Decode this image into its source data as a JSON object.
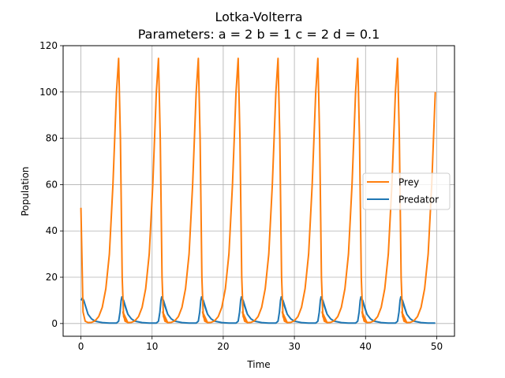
{
  "chart_data": {
    "type": "line",
    "title": "Lotka-Volterra",
    "subtitle": "Parameters: a = 2 b = 1 c = 2 d = 0.1",
    "xlabel": "Time",
    "ylabel": "Population",
    "xlim": [
      -2.5,
      52.5
    ],
    "ylim": [
      -5.5,
      120
    ],
    "xticks": [
      0,
      10,
      20,
      30,
      40,
      50
    ],
    "yticks": [
      0,
      20,
      40,
      60,
      80,
      100,
      120
    ],
    "grid": true,
    "legend_position": "center-right",
    "period": 5.6,
    "series": [
      {
        "name": "Prey",
        "color": "#ff7f0e",
        "points": [
          [
            0,
            50
          ],
          [
            0.3,
            5
          ],
          [
            0.6,
            1
          ],
          [
            1.0,
            0.4
          ],
          [
            1.5,
            0.5
          ],
          [
            2.0,
            1.2
          ],
          [
            2.5,
            3
          ],
          [
            3.0,
            7
          ],
          [
            3.5,
            15
          ],
          [
            4.0,
            30
          ],
          [
            4.5,
            60
          ],
          [
            5.0,
            100
          ],
          [
            5.3,
            114.5
          ],
          [
            5.55,
            80
          ],
          [
            5.8,
            20
          ],
          [
            6.0,
            3
          ],
          [
            6.3,
            1
          ],
          [
            6.6,
            0.4
          ]
        ]
      },
      {
        "name": "Predator",
        "color": "#1f77b4",
        "points": [
          [
            0,
            10
          ],
          [
            0.2,
            11
          ],
          [
            0.4,
            10
          ],
          [
            0.7,
            7
          ],
          [
            1.0,
            4
          ],
          [
            1.5,
            2
          ],
          [
            2.0,
            1
          ],
          [
            3.0,
            0.4
          ],
          [
            4.0,
            0.2
          ],
          [
            5.0,
            0.2
          ],
          [
            5.3,
            1
          ],
          [
            5.5,
            5
          ],
          [
            5.65,
            10
          ],
          [
            5.75,
            11.5
          ],
          [
            5.95,
            10
          ],
          [
            6.3,
            7
          ],
          [
            6.6,
            4
          ]
        ]
      }
    ]
  }
}
